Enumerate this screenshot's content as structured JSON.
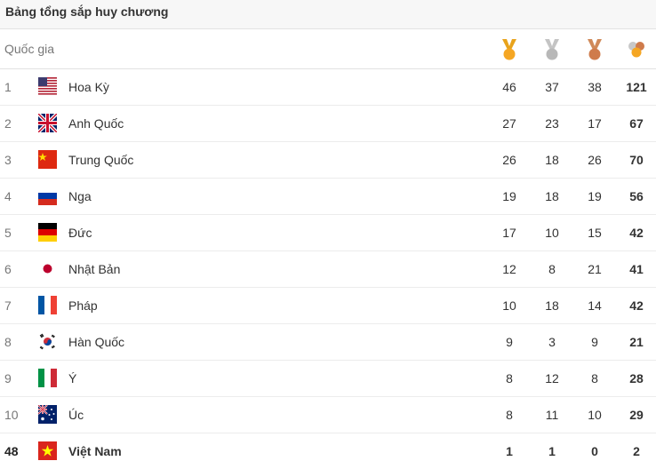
{
  "title": "Bảng tổng sắp huy chương",
  "header": {
    "country_label": "Quốc gia"
  },
  "colors": {
    "gold": "#f5a623",
    "silver": "#b8b8b8",
    "bronze": "#cf7b4b"
  },
  "rows": [
    {
      "rank": "1",
      "country": "Hoa Kỳ",
      "flag": "us-flag-icon",
      "gold": "46",
      "silver": "37",
      "bronze": "38",
      "total": "121"
    },
    {
      "rank": "2",
      "country": "Anh Quốc",
      "flag": "uk-flag-icon",
      "gold": "27",
      "silver": "23",
      "bronze": "17",
      "total": "67"
    },
    {
      "rank": "3",
      "country": "Trung Quốc",
      "flag": "china-flag-icon",
      "gold": "26",
      "silver": "18",
      "bronze": "26",
      "total": "70"
    },
    {
      "rank": "4",
      "country": "Nga",
      "flag": "russia-flag-icon",
      "gold": "19",
      "silver": "18",
      "bronze": "19",
      "total": "56"
    },
    {
      "rank": "5",
      "country": "Đức",
      "flag": "germany-flag-icon",
      "gold": "17",
      "silver": "10",
      "bronze": "15",
      "total": "42"
    },
    {
      "rank": "6",
      "country": "Nhật Bản",
      "flag": "japan-flag-icon",
      "gold": "12",
      "silver": "8",
      "bronze": "21",
      "total": "41"
    },
    {
      "rank": "7",
      "country": "Pháp",
      "flag": "france-flag-icon",
      "gold": "10",
      "silver": "18",
      "bronze": "14",
      "total": "42"
    },
    {
      "rank": "8",
      "country": "Hàn Quốc",
      "flag": "korea-flag-icon",
      "gold": "9",
      "silver": "3",
      "bronze": "9",
      "total": "21"
    },
    {
      "rank": "9",
      "country": "Ý",
      "flag": "italy-flag-icon",
      "gold": "8",
      "silver": "12",
      "bronze": "8",
      "total": "28"
    },
    {
      "rank": "10",
      "country": "Úc",
      "flag": "australia-flag-icon",
      "gold": "8",
      "silver": "11",
      "bronze": "10",
      "total": "29"
    },
    {
      "rank": "48",
      "country": "Việt Nam",
      "flag": "vietnam-flag-icon",
      "gold": "1",
      "silver": "1",
      "bronze": "0",
      "total": "2"
    }
  ]
}
